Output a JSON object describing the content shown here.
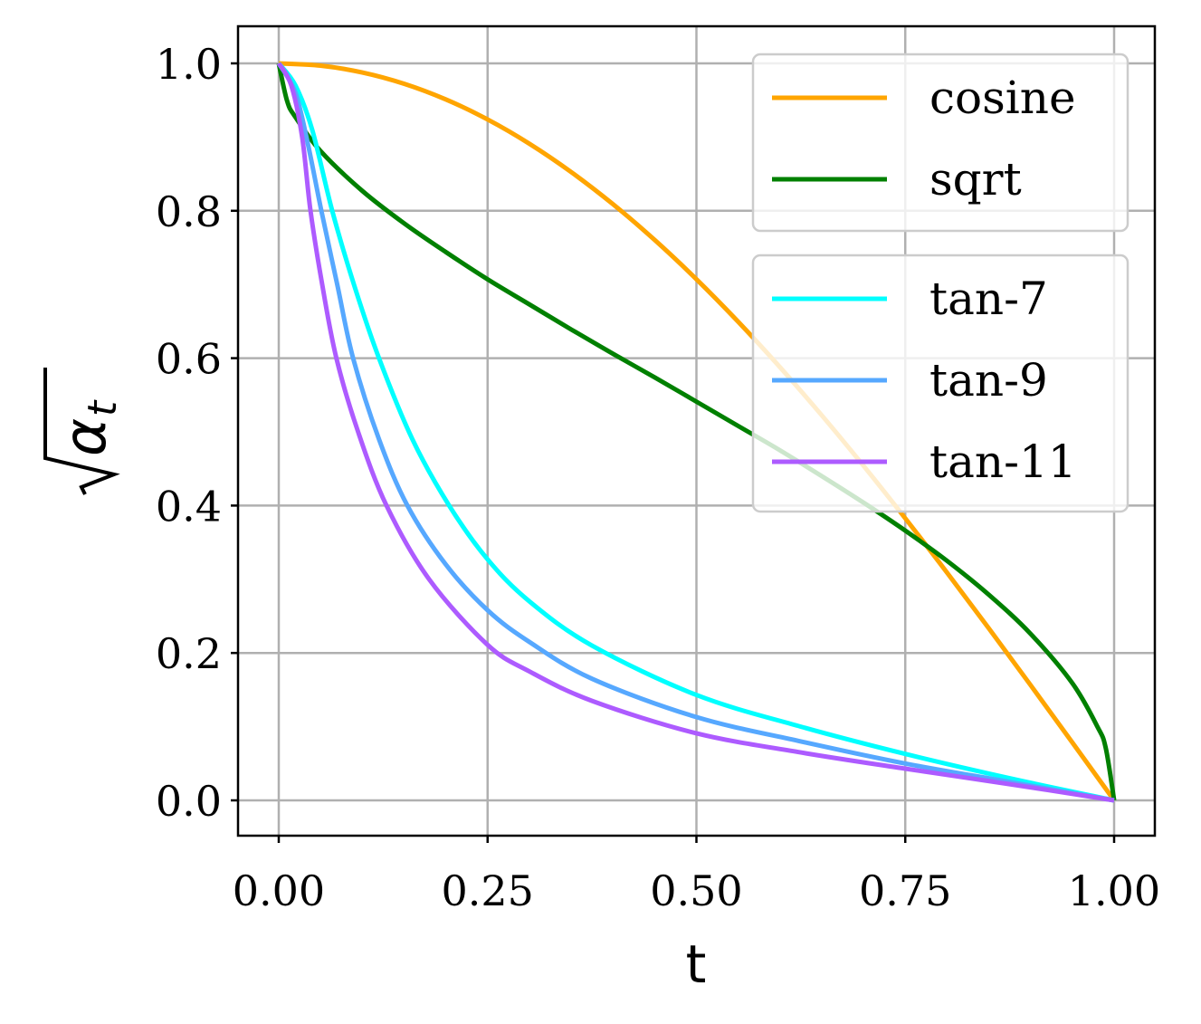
{
  "chart_data": {
    "type": "line",
    "xlabel": "t",
    "ylabel": {
      "radicand": "α",
      "subscript": "t"
    },
    "xlim": [
      -0.05,
      1.05
    ],
    "ylim": [
      -0.05,
      1.05
    ],
    "xticks": [
      "0.00",
      "0.25",
      "0.50",
      "0.75",
      "1.00"
    ],
    "xtick_values": [
      0,
      0.25,
      0.5,
      0.75,
      1.0
    ],
    "yticks": [
      "0.0",
      "0.2",
      "0.4",
      "0.6",
      "0.8",
      "1.0"
    ],
    "ytick_values": [
      0,
      0.2,
      0.4,
      0.6,
      0.8,
      1.0
    ],
    "grid": true,
    "legend_placement": "top-right",
    "legends": [
      {
        "entries": [
          "cosine",
          "sqrt"
        ]
      },
      {
        "entries": [
          "tan-7",
          "tan-9",
          "tan-11"
        ]
      }
    ],
    "series": [
      {
        "name": "cosine",
        "color": "#ffa500",
        "x": [
          0,
          0.05,
          0.1,
          0.15,
          0.2,
          0.25,
          0.3,
          0.35,
          0.4,
          0.45,
          0.5,
          0.55,
          0.6,
          0.65,
          0.7,
          0.75,
          0.8,
          0.85,
          0.9,
          0.95,
          1
        ],
        "y": [
          1,
          0.9969,
          0.9877,
          0.9724,
          0.9511,
          0.9239,
          0.891,
          0.8526,
          0.809,
          0.7604,
          0.7071,
          0.6494,
          0.5878,
          0.5225,
          0.454,
          0.3827,
          0.309,
          0.2334,
          0.1564,
          0.0785,
          0
        ]
      },
      {
        "name": "sqrt",
        "color": "#008000",
        "x": [
          0,
          0.01,
          0.02,
          0.05,
          0.1,
          0.15,
          0.2,
          0.25,
          0.3,
          0.35,
          0.4,
          0.45,
          0.5,
          0.55,
          0.6,
          0.65,
          0.7,
          0.75,
          0.8,
          0.85,
          0.9,
          0.95,
          0.98,
          0.99,
          1
        ],
        "y": [
          1,
          0.949,
          0.927,
          0.881,
          0.827,
          0.783,
          0.744,
          0.707,
          0.673,
          0.639,
          0.606,
          0.574,
          0.541,
          0.508,
          0.475,
          0.44,
          0.404,
          0.366,
          0.325,
          0.279,
          0.226,
          0.159,
          0.1,
          0.071,
          0
        ]
      },
      {
        "name": "tan-7",
        "color": "#00ffff",
        "x": [
          0,
          0.02,
          0.04,
          0.064,
          0.09,
          0.12,
          0.16,
          0.204,
          0.25,
          0.3,
          0.375,
          0.5,
          0.625,
          0.75,
          0.875,
          1
        ],
        "y": [
          1,
          0.97,
          0.91,
          0.8,
          0.7,
          0.6,
          0.49,
          0.4,
          0.327,
          0.27,
          0.21,
          0.143,
          0.1,
          0.063,
          0.03,
          0
        ]
      },
      {
        "name": "tan-9",
        "color": "#56a8ff",
        "x": [
          0,
          0.02,
          0.035,
          0.051,
          0.07,
          0.089,
          0.12,
          0.154,
          0.2,
          0.25,
          0.3,
          0.375,
          0.5,
          0.625,
          0.75,
          0.875,
          1
        ],
        "y": [
          1,
          0.96,
          0.89,
          0.8,
          0.7,
          0.6,
          0.49,
          0.4,
          0.32,
          0.258,
          0.215,
          0.165,
          0.113,
          0.08,
          0.05,
          0.025,
          0
        ]
      },
      {
        "name": "tan-11",
        "color": "#ad5bff",
        "x": [
          0,
          0.015,
          0.028,
          0.038,
          0.052,
          0.069,
          0.095,
          0.129,
          0.18,
          0.25,
          0.3,
          0.375,
          0.5,
          0.625,
          0.75,
          0.875,
          1
        ],
        "y": [
          1,
          0.97,
          0.9,
          0.8,
          0.7,
          0.6,
          0.5,
          0.4,
          0.3,
          0.211,
          0.175,
          0.135,
          0.091,
          0.065,
          0.043,
          0.022,
          0
        ]
      }
    ]
  }
}
